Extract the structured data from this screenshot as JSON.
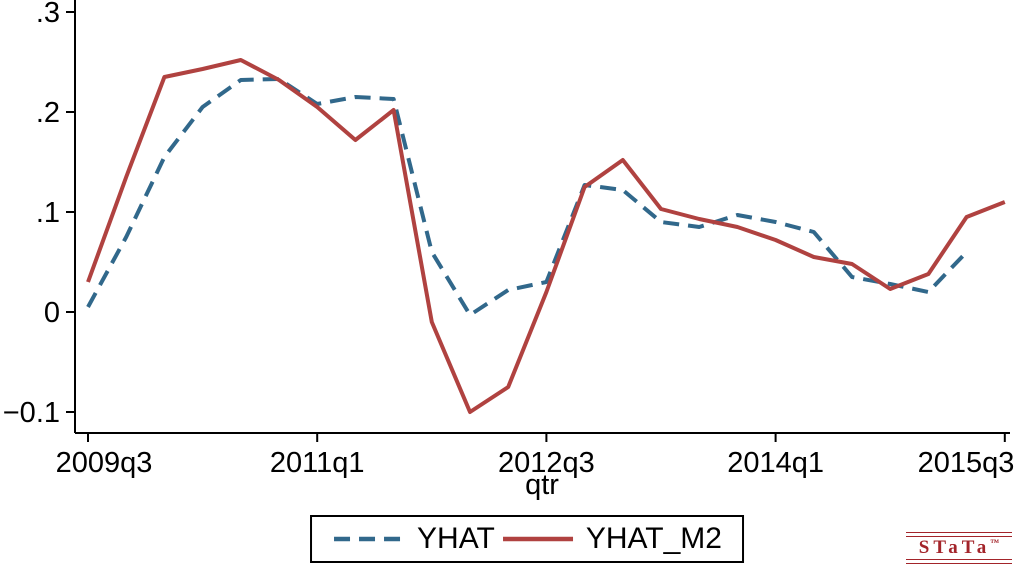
{
  "window": {
    "background": "#ffffff"
  },
  "chart_data": {
    "type": "line",
    "title": "",
    "xlabel": "qtr",
    "ylabel": "",
    "grid": false,
    "legend_position": "bottom-center",
    "ylim": [
      -0.12,
      0.31
    ],
    "y_ticks": [
      {
        "value": 0.3,
        "label": ".3"
      },
      {
        "value": 0.2,
        "label": ".2"
      },
      {
        "value": 0.1,
        "label": ".1"
      },
      {
        "value": 0,
        "label": "0"
      },
      {
        "value": -0.1,
        "label": "−0.1"
      }
    ],
    "x_ticks": [
      {
        "index": 0,
        "label": "2009q3"
      },
      {
        "index": 6,
        "label": "2011q1"
      },
      {
        "index": 12,
        "label": "2012q3"
      },
      {
        "index": 18,
        "label": "2014q1"
      },
      {
        "index": 24,
        "label": "2015q3"
      }
    ],
    "categories": [
      "2009q3",
      "2009q4",
      "2010q1",
      "2010q2",
      "2010q3",
      "2010q4",
      "2011q1",
      "2011q2",
      "2011q3",
      "2011q4",
      "2012q1",
      "2012q2",
      "2012q3",
      "2012q4",
      "2013q1",
      "2013q2",
      "2013q3",
      "2013q4",
      "2014q1",
      "2014q2",
      "2014q3",
      "2014q4",
      "2015q1",
      "2015q2",
      "2015q3"
    ],
    "series": [
      {
        "name": "YHAT",
        "style": "dashed",
        "color": "#31688B",
        "dash": "16 9",
        "values": [
          0.005,
          0.075,
          0.155,
          0.205,
          0.232,
          0.233,
          0.208,
          0.215,
          0.213,
          0.06,
          -0.003,
          0.022,
          0.03,
          0.127,
          0.122,
          0.09,
          0.085,
          0.097,
          0.09,
          0.08,
          0.035,
          0.028,
          0.02,
          0.06,
          null
        ]
      },
      {
        "name": "YHAT_M2",
        "style": "solid",
        "color": "#B04240",
        "dash": null,
        "values": [
          0.03,
          0.135,
          0.235,
          0.243,
          0.252,
          0.232,
          0.205,
          0.172,
          0.202,
          -0.01,
          -0.1,
          -0.075,
          0.02,
          0.125,
          0.152,
          0.103,
          0.093,
          0.085,
          0.072,
          0.055,
          0.048,
          0.023,
          0.038,
          0.095,
          0.11
        ]
      }
    ]
  },
  "branding": {
    "logo_text": "STaTa",
    "trademark": "™",
    "color": "#A3242A"
  }
}
